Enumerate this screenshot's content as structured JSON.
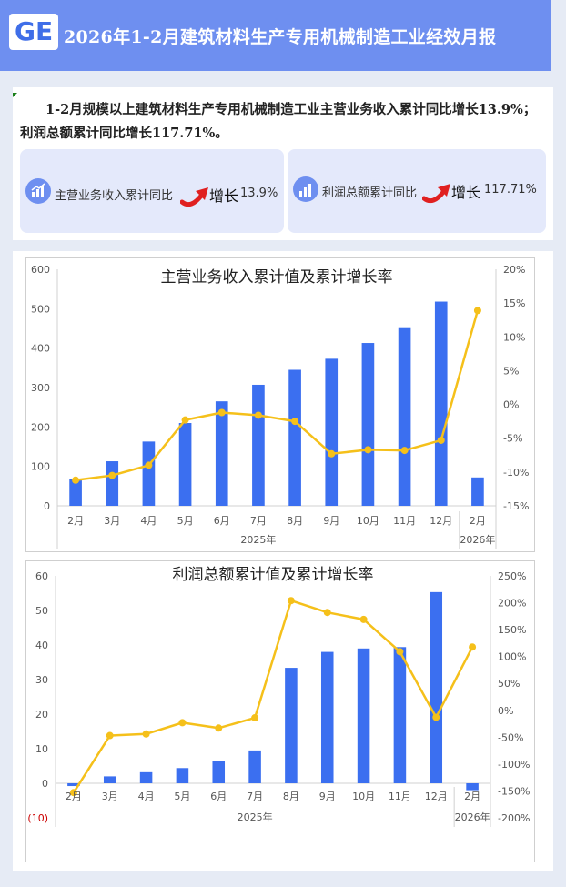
{
  "header": {
    "logo_text": "GE",
    "title": "2026年1-2月建筑材料生产专用机械制造工业经效月报"
  },
  "summary": {
    "text": "1-2月规模以上建筑材料生产专用机械制造工业主营业务收入累计同比增长13.9%；利润总额累计同比增长117.71%。"
  },
  "kpis": [
    {
      "label": "主营业务收入累计同比",
      "change_word": "增长",
      "value": "13.9%"
    },
    {
      "label": "利润总额累计同比",
      "change_word": "增长",
      "value": "117.71%"
    }
  ],
  "colors": {
    "bar": "#3b6ff0",
    "line": "#f5c01a",
    "header": "#6e8ff0",
    "negative_label": "#cc0000"
  },
  "chart_data": [
    {
      "type": "bar+line",
      "title": "主营业务收入累计值及累计增长率",
      "categories": [
        "2月",
        "3月",
        "4月",
        "5月",
        "6月",
        "7月",
        "8月",
        "9月",
        "10月",
        "11月",
        "12月",
        "2月"
      ],
      "groups": [
        {
          "label": "2025年",
          "count": 11
        },
        {
          "label": "2026年",
          "count": 1
        }
      ],
      "bar_values": [
        68,
        113,
        163,
        210,
        265,
        307,
        345,
        373,
        413,
        453,
        518,
        72
      ],
      "line_values": [
        -11.2,
        -10.5,
        -9.0,
        -2.3,
        -1.2,
        -1.6,
        -2.5,
        -7.3,
        -6.7,
        -6.8,
        -5.3,
        13.9
      ],
      "ylim_left": [
        0,
        600
      ],
      "ylim_right": [
        -15,
        20
      ],
      "left_ticks": [
        "0",
        "100",
        "200",
        "300",
        "400",
        "500",
        "600"
      ],
      "right_ticks": [
        "-15%",
        "-10%",
        "-5%",
        "0%",
        "5%",
        "10%",
        "15%",
        "20%"
      ]
    },
    {
      "type": "bar+line",
      "title": "利润总额累计值及累计增长率",
      "categories": [
        "2月",
        "3月",
        "4月",
        "5月",
        "6月",
        "7月",
        "8月",
        "9月",
        "10月",
        "11月",
        "12月",
        "2月"
      ],
      "groups": [
        {
          "label": "2025年",
          "count": 11
        },
        {
          "label": "2026年",
          "count": 1
        }
      ],
      "bar_values": [
        -0.8,
        2.0,
        3.2,
        4.4,
        6.5,
        9.5,
        33.4,
        38.0,
        39.0,
        39.4,
        55.3,
        -2.0
      ],
      "line_values": [
        -153,
        -47,
        -44,
        -23,
        -33,
        -14,
        204,
        182,
        169,
        109,
        -13,
        117.71
      ],
      "ylim_left": [
        -10,
        60
      ],
      "ylim_right": [
        -200,
        250
      ],
      "left_ticks": [
        "(10)",
        "0",
        "10",
        "20",
        "30",
        "40",
        "50",
        "60"
      ],
      "right_ticks": [
        "-200%",
        "-150%",
        "-100%",
        "-50%",
        "0%",
        "50%",
        "100%",
        "150%",
        "200%",
        "250%"
      ]
    }
  ]
}
